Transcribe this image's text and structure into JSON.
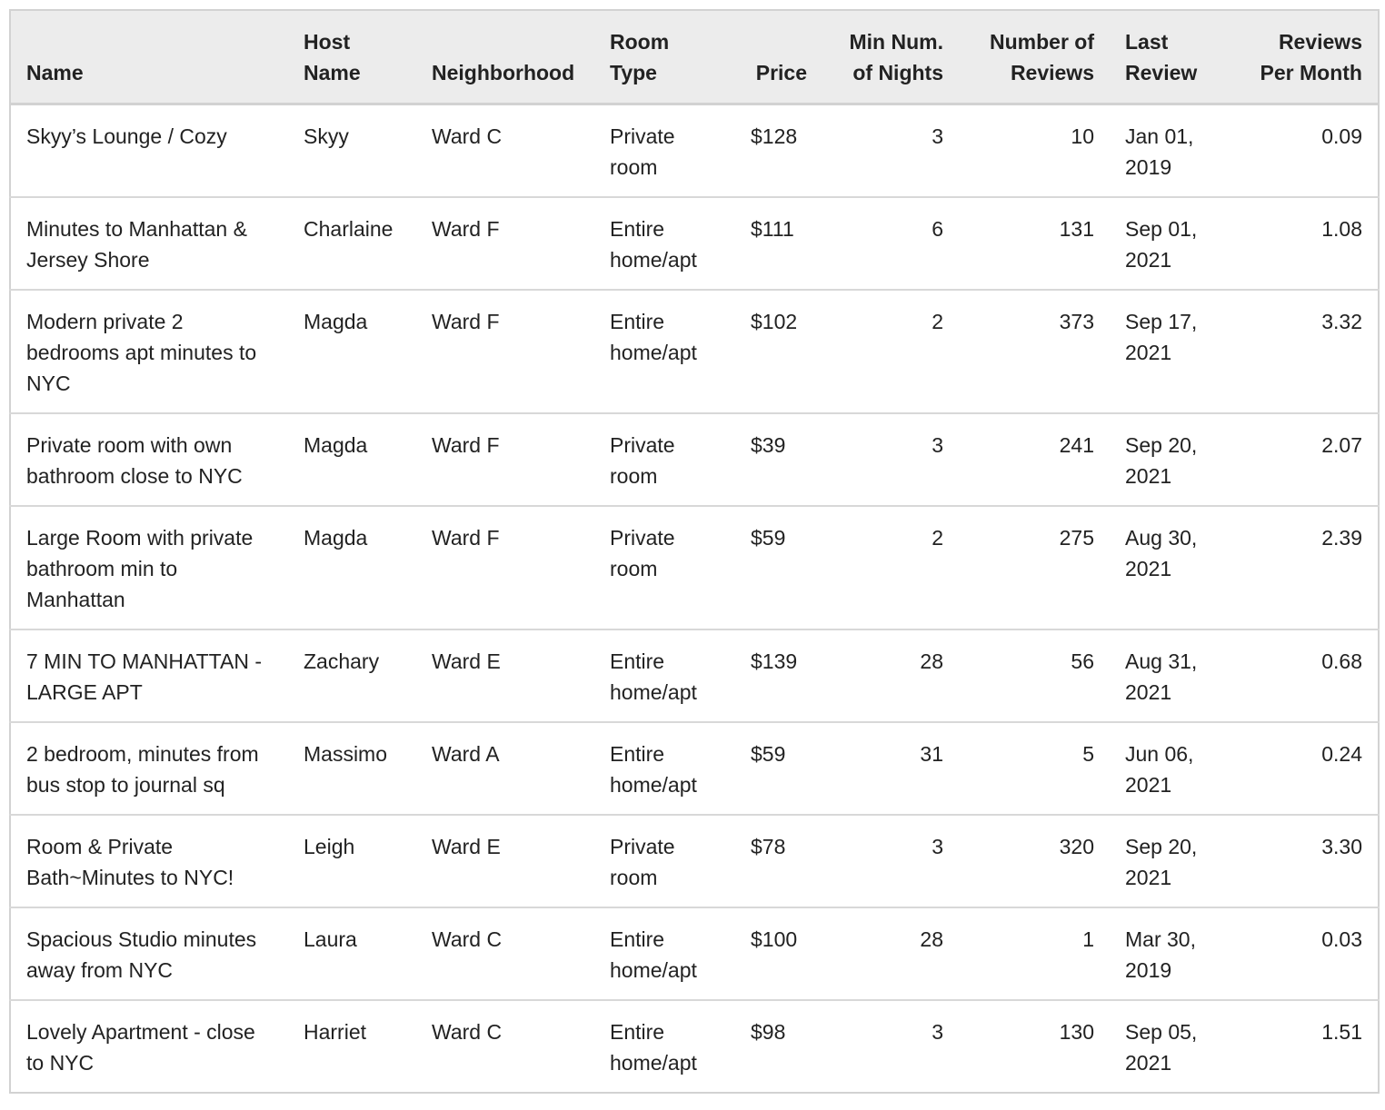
{
  "table": {
    "columns": [
      {
        "label": "Name"
      },
      {
        "label": "Host\nName"
      },
      {
        "label": "Neighborhood"
      },
      {
        "label": "Room\nType"
      },
      {
        "label": "Price"
      },
      {
        "label": "Min Num.\nof Nights"
      },
      {
        "label": "Number of\nReviews"
      },
      {
        "label": "Last\nReview"
      },
      {
        "label": "Reviews\nPer Month"
      }
    ],
    "rows": [
      {
        "name": "Skyy’s Lounge / Cozy",
        "host": "Skyy",
        "neighborhood": "Ward C",
        "room_type": "Private room",
        "price": "$128",
        "min_nights": "3",
        "num_reviews": "10",
        "last_review": "Jan 01, 2019",
        "reviews_per_month": "0.09"
      },
      {
        "name": "Minutes to Manhattan & Jersey Shore",
        "host": "Charlaine",
        "neighborhood": "Ward F",
        "room_type": "Entire home/apt",
        "price": "$111",
        "min_nights": "6",
        "num_reviews": "131",
        "last_review": "Sep 01, 2021",
        "reviews_per_month": "1.08"
      },
      {
        "name": "Modern private 2 bedrooms apt minutes to NYC",
        "host": "Magda",
        "neighborhood": "Ward F",
        "room_type": "Entire home/apt",
        "price": "$102",
        "min_nights": "2",
        "num_reviews": "373",
        "last_review": "Sep 17, 2021",
        "reviews_per_month": "3.32"
      },
      {
        "name": "Private room with own bathroom close to NYC",
        "host": "Magda",
        "neighborhood": "Ward F",
        "room_type": "Private room",
        "price": "$39",
        "min_nights": "3",
        "num_reviews": "241",
        "last_review": "Sep 20, 2021",
        "reviews_per_month": "2.07"
      },
      {
        "name": "Large Room with private bathroom min to Manhattan",
        "host": "Magda",
        "neighborhood": "Ward F",
        "room_type": "Private room",
        "price": "$59",
        "min_nights": "2",
        "num_reviews": "275",
        "last_review": "Aug 30, 2021",
        "reviews_per_month": "2.39"
      },
      {
        "name": "7 MIN TO MANHATTAN - LARGE APT",
        "host": "Zachary",
        "neighborhood": "Ward E",
        "room_type": "Entire home/apt",
        "price": "$139",
        "min_nights": "28",
        "num_reviews": "56",
        "last_review": "Aug 31, 2021",
        "reviews_per_month": "0.68"
      },
      {
        "name": "2 bedroom, minutes from bus stop to journal sq",
        "host": "Massimo",
        "neighborhood": "Ward A",
        "room_type": "Entire home/apt",
        "price": "$59",
        "min_nights": "31",
        "num_reviews": "5",
        "last_review": "Jun 06, 2021",
        "reviews_per_month": "0.24"
      },
      {
        "name": "Room & Private Bath~Minutes to NYC!",
        "host": "Leigh",
        "neighborhood": "Ward E",
        "room_type": "Private room",
        "price": "$78",
        "min_nights": "3",
        "num_reviews": "320",
        "last_review": "Sep 20, 2021",
        "reviews_per_month": "3.30"
      },
      {
        "name": "Spacious Studio minutes away from NYC",
        "host": "Laura",
        "neighborhood": "Ward C",
        "room_type": "Entire home/apt",
        "price": "$100",
        "min_nights": "28",
        "num_reviews": "1",
        "last_review": "Mar 30, 2019",
        "reviews_per_month": "0.03"
      },
      {
        "name": "Lovely Apartment - close to NYC",
        "host": "Harriet",
        "neighborhood": "Ward C",
        "room_type": "Entire home/apt",
        "price": "$98",
        "min_nights": "3",
        "num_reviews": "130",
        "last_review": "Sep 05, 2021",
        "reviews_per_month": "1.51"
      }
    ]
  }
}
